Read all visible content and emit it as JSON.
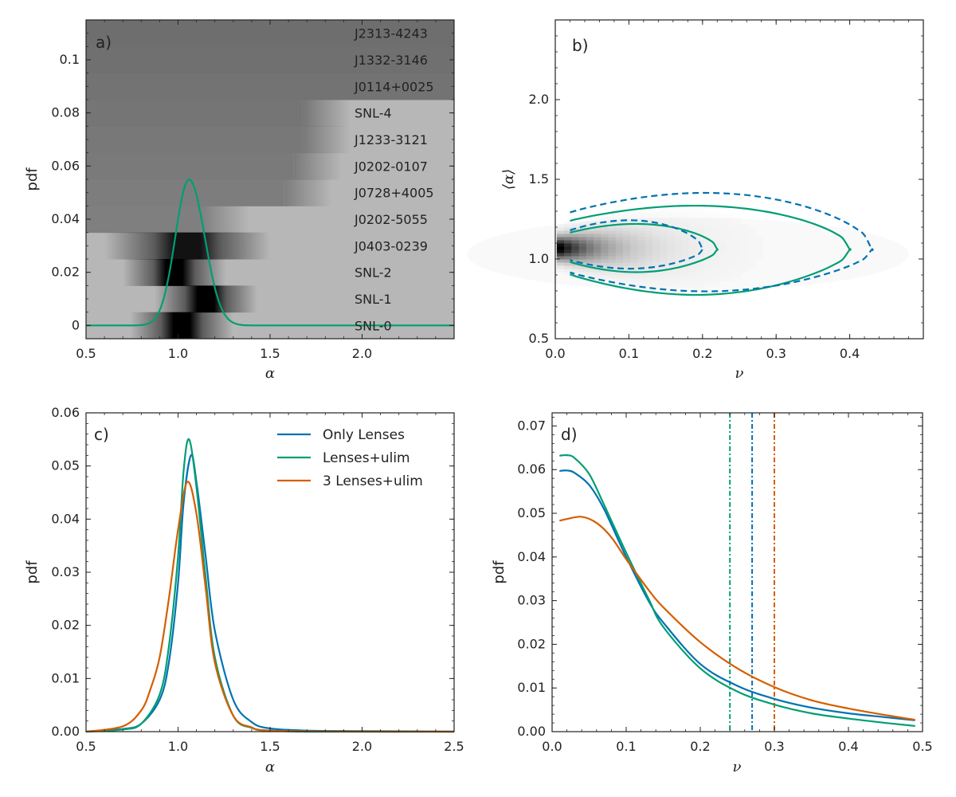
{
  "colors": {
    "blue": "#0072b2",
    "green": "#009e73",
    "orange": "#d55e00"
  },
  "chart_data": [
    {
      "panel_label": "a)",
      "type": "heatmap",
      "xlabel": "α",
      "ylabel": "pdf",
      "xlim": [
        0.5,
        2.5
      ],
      "ylim": [
        -0.005,
        0.115
      ],
      "xticks": [
        "0.5",
        "1.0",
        "1.5",
        "2.0"
      ],
      "yticks": [
        "0",
        "0.02",
        "0.04",
        "0.06",
        "0.08",
        "0.1"
      ],
      "rows": [
        "SNL-0",
        "SNL-1",
        "SNL-2",
        "J0403-0239",
        "J0202-5055",
        "J0728+4005",
        "J0202-0107",
        "J1233-3121",
        "SNL-4",
        "J0114+0025",
        "J1332-3146",
        "J2313-4243"
      ],
      "row_upper_limits": [
        1.25,
        1.35,
        1.35,
        1.5,
        1.3,
        1.75,
        1.8,
        1.85,
        1.85,
        2.5,
        2.5,
        2.5
      ],
      "curve": {
        "type": "line",
        "series": "Lenses+ulim",
        "peak_x": 1.06,
        "peak_y": 0.055
      }
    },
    {
      "panel_label": "b)",
      "type": "heatmap",
      "xlabel": "ν",
      "ylabel": "⟨α⟩",
      "xlim": [
        0.0,
        0.5
      ],
      "ylim": [
        0.5,
        2.5
      ],
      "xticks": [
        "0.0",
        "0.1",
        "0.2",
        "0.3",
        "0.4"
      ],
      "yticks": [
        "0.5",
        "1.0",
        "1.5",
        "2.0"
      ],
      "contours": [
        {
          "style": "solid",
          "color": "green",
          "x_min": 0.02,
          "x_max": 0.22,
          "y_top": 1.2,
          "y_bottom": 0.93
        },
        {
          "style": "solid",
          "color": "green",
          "x_min": 0.02,
          "x_max": 0.4,
          "y_top": 1.3,
          "y_bottom": 0.8
        },
        {
          "style": "dashed",
          "color": "blue",
          "x_min": 0.02,
          "x_max": 0.2,
          "y_top": 1.22,
          "y_bottom": 0.95
        },
        {
          "style": "dashed",
          "color": "blue",
          "x_min": 0.02,
          "x_max": 0.43,
          "y_top": 1.37,
          "y_bottom": 0.82
        }
      ]
    },
    {
      "panel_label": "c)",
      "type": "line",
      "xlabel": "α",
      "ylabel": "pdf",
      "xlim": [
        0.5,
        2.5
      ],
      "ylim": [
        0.0,
        0.06
      ],
      "xticks": [
        "0.5",
        "1.0",
        "1.5",
        "2.0",
        "2.5"
      ],
      "yticks": [
        "0.00",
        "0.01",
        "0.02",
        "0.03",
        "0.04",
        "0.05",
        "0.06"
      ],
      "legend": {
        "placement": "top-right"
      },
      "series": [
        {
          "name": "Only Lenses",
          "color": "blue",
          "x": [
            0.5,
            0.7,
            0.8,
            0.9,
            0.95,
            1.0,
            1.03,
            1.07,
            1.1,
            1.15,
            1.2,
            1.3,
            1.4,
            1.5,
            1.7,
            2.0,
            2.5
          ],
          "values": [
            0.0,
            0.0005,
            0.0015,
            0.006,
            0.013,
            0.028,
            0.043,
            0.052,
            0.047,
            0.033,
            0.019,
            0.006,
            0.0018,
            0.0006,
            0.0002,
            0.0001,
            0.0
          ]
        },
        {
          "name": "Lenses+ulim",
          "color": "green",
          "x": [
            0.5,
            0.7,
            0.8,
            0.9,
            0.95,
            1.0,
            1.03,
            1.06,
            1.1,
            1.15,
            1.2,
            1.3,
            1.4,
            1.5,
            1.7,
            2.0,
            2.5
          ],
          "values": [
            0.0,
            0.0004,
            0.0015,
            0.007,
            0.016,
            0.033,
            0.049,
            0.055,
            0.046,
            0.029,
            0.014,
            0.003,
            0.0007,
            0.0002,
            0.0,
            0.0,
            0.0
          ]
        },
        {
          "name": "3 Lenses+ulim",
          "color": "orange",
          "x": [
            0.5,
            0.7,
            0.8,
            0.85,
            0.9,
            0.95,
            1.0,
            1.05,
            1.1,
            1.15,
            1.2,
            1.3,
            1.4,
            1.5,
            2.0,
            2.5
          ],
          "values": [
            0.0,
            0.001,
            0.004,
            0.008,
            0.014,
            0.025,
            0.038,
            0.047,
            0.041,
            0.027,
            0.013,
            0.003,
            0.0008,
            0.0002,
            0.0,
            0.0
          ]
        }
      ]
    },
    {
      "panel_label": "d)",
      "type": "line",
      "xlabel": "ν",
      "ylabel": "pdf",
      "xlim": [
        0.0,
        0.5
      ],
      "ylim": [
        0.0,
        0.073
      ],
      "xticks": [
        "0.0",
        "0.1",
        "0.2",
        "0.3",
        "0.4",
        "0.5"
      ],
      "yticks": [
        "0.00",
        "0.01",
        "0.02",
        "0.03",
        "0.04",
        "0.05",
        "0.06",
        "0.07"
      ],
      "series": [
        {
          "name": "Only Lenses",
          "color": "blue",
          "x": [
            0.01,
            0.02,
            0.03,
            0.05,
            0.07,
            0.1,
            0.13,
            0.15,
            0.2,
            0.25,
            0.3,
            0.35,
            0.4,
            0.45,
            0.49
          ],
          "values": [
            0.0597,
            0.0598,
            0.0593,
            0.0565,
            0.051,
            0.04,
            0.03,
            0.025,
            0.0155,
            0.0105,
            0.0075,
            0.0055,
            0.0042,
            0.0033,
            0.0026
          ]
        },
        {
          "name": "Lenses+ulim",
          "color": "green",
          "x": [
            0.01,
            0.02,
            0.03,
            0.05,
            0.07,
            0.1,
            0.13,
            0.15,
            0.2,
            0.25,
            0.3,
            0.35,
            0.4,
            0.45,
            0.49
          ],
          "values": [
            0.0632,
            0.0633,
            0.0627,
            0.059,
            0.052,
            0.041,
            0.0305,
            0.024,
            0.0145,
            0.0092,
            0.0062,
            0.0042,
            0.003,
            0.002,
            0.0013
          ]
        },
        {
          "name": "3 Lenses+ulim",
          "color": "orange",
          "x": [
            0.01,
            0.02,
            0.04,
            0.06,
            0.08,
            0.1,
            0.13,
            0.15,
            0.2,
            0.25,
            0.3,
            0.35,
            0.4,
            0.45,
            0.49
          ],
          "values": [
            0.0483,
            0.0487,
            0.0492,
            0.0478,
            0.0445,
            0.0395,
            0.0325,
            0.0285,
            0.0205,
            0.0145,
            0.0102,
            0.0072,
            0.0053,
            0.0038,
            0.0027
          ]
        }
      ],
      "vlines": [
        {
          "x": 0.24,
          "color": "green",
          "style": "dash-dot"
        },
        {
          "x": 0.27,
          "color": "blue",
          "style": "dash-dot"
        },
        {
          "x": 0.3,
          "color": "orange",
          "style": "dash-dot"
        }
      ]
    }
  ]
}
